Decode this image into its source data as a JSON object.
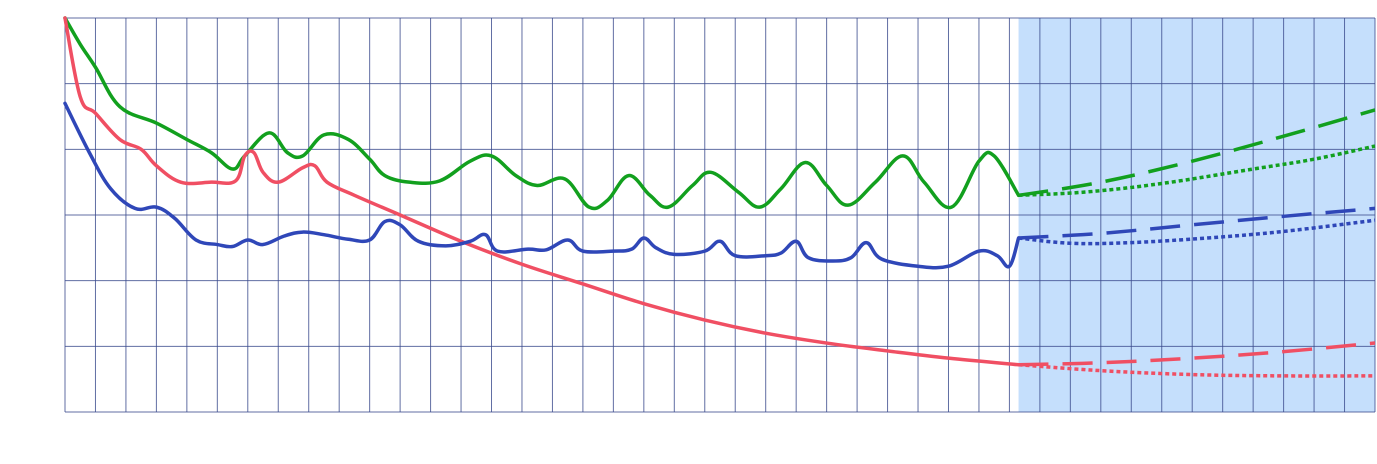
{
  "chart_data": {
    "type": "line",
    "title": "",
    "xlabel": "",
    "ylabel": "",
    "grid": true,
    "legend": "none",
    "x_range": [
      0,
      43
    ],
    "y_range": [
      0,
      6
    ],
    "forecast_region": [
      31.3,
      43
    ],
    "colors": {
      "grid": "#3a4a8c",
      "forecast_fill": "#c5dffc",
      "green": "#12a01e",
      "red": "#f04f63",
      "blue": "#2f47b8"
    },
    "series": [
      {
        "key": "green",
        "color": "#12a01e",
        "points": [
          [
            0,
            6.0
          ],
          [
            0.5,
            5.6
          ],
          [
            1,
            5.25
          ],
          [
            1.8,
            4.65
          ],
          [
            3,
            4.4
          ],
          [
            4,
            4.15
          ],
          [
            4.8,
            3.95
          ],
          [
            5.5,
            3.7
          ],
          [
            5.9,
            3.9
          ],
          [
            6.7,
            4.25
          ],
          [
            7.3,
            3.95
          ],
          [
            7.8,
            3.9
          ],
          [
            8.5,
            4.22
          ],
          [
            9.3,
            4.15
          ],
          [
            10,
            3.85
          ],
          [
            10.5,
            3.6
          ],
          [
            11.3,
            3.5
          ],
          [
            12.3,
            3.52
          ],
          [
            13.3,
            3.82
          ],
          [
            14,
            3.9
          ],
          [
            14.8,
            3.6
          ],
          [
            15.5,
            3.45
          ],
          [
            16.4,
            3.55
          ],
          [
            17.2,
            3.12
          ],
          [
            17.8,
            3.22
          ],
          [
            18.5,
            3.6
          ],
          [
            19.2,
            3.3
          ],
          [
            19.8,
            3.12
          ],
          [
            20.6,
            3.45
          ],
          [
            21.2,
            3.65
          ],
          [
            22.1,
            3.35
          ],
          [
            22.8,
            3.12
          ],
          [
            23.5,
            3.4
          ],
          [
            24.3,
            3.8
          ],
          [
            25,
            3.45
          ],
          [
            25.7,
            3.15
          ],
          [
            26.6,
            3.5
          ],
          [
            27.5,
            3.9
          ],
          [
            28.2,
            3.5
          ],
          [
            29.1,
            3.12
          ],
          [
            30,
            3.82
          ],
          [
            30.5,
            3.9
          ],
          [
            31.3,
            3.3
          ]
        ]
      },
      {
        "key": "red",
        "color": "#f04f63",
        "points": [
          [
            0,
            6.0
          ],
          [
            0.5,
            4.8
          ],
          [
            1,
            4.55
          ],
          [
            1.8,
            4.15
          ],
          [
            2.5,
            4.0
          ],
          [
            3,
            3.75
          ],
          [
            3.8,
            3.5
          ],
          [
            4.8,
            3.5
          ],
          [
            5.6,
            3.52
          ],
          [
            5.9,
            3.9
          ],
          [
            6.2,
            3.95
          ],
          [
            6.5,
            3.65
          ],
          [
            7,
            3.5
          ],
          [
            7.8,
            3.72
          ],
          [
            8.2,
            3.75
          ],
          [
            8.6,
            3.5
          ],
          [
            9.5,
            3.3
          ],
          [
            11,
            3.0
          ],
          [
            13,
            2.6
          ],
          [
            15,
            2.25
          ],
          [
            17,
            1.95
          ],
          [
            19,
            1.65
          ],
          [
            21,
            1.4
          ],
          [
            23,
            1.2
          ],
          [
            25,
            1.05
          ],
          [
            27,
            0.93
          ],
          [
            29,
            0.82
          ],
          [
            31.3,
            0.72
          ]
        ]
      },
      {
        "key": "blue",
        "color": "#2f47b8",
        "points": [
          [
            0,
            4.7
          ],
          [
            0.8,
            3.95
          ],
          [
            1.5,
            3.4
          ],
          [
            2.3,
            3.1
          ],
          [
            3,
            3.12
          ],
          [
            3.6,
            2.95
          ],
          [
            4.3,
            2.62
          ],
          [
            5,
            2.55
          ],
          [
            5.5,
            2.52
          ],
          [
            6,
            2.62
          ],
          [
            6.5,
            2.55
          ],
          [
            7.2,
            2.68
          ],
          [
            7.8,
            2.74
          ],
          [
            8.5,
            2.7
          ],
          [
            9.3,
            2.63
          ],
          [
            10,
            2.62
          ],
          [
            10.5,
            2.9
          ],
          [
            11,
            2.85
          ],
          [
            11.6,
            2.6
          ],
          [
            12.5,
            2.53
          ],
          [
            13.3,
            2.6
          ],
          [
            13.8,
            2.7
          ],
          [
            14.2,
            2.45
          ],
          [
            15.2,
            2.48
          ],
          [
            15.8,
            2.47
          ],
          [
            16.5,
            2.62
          ],
          [
            17,
            2.45
          ],
          [
            18,
            2.45
          ],
          [
            18.6,
            2.48
          ],
          [
            19,
            2.65
          ],
          [
            19.4,
            2.5
          ],
          [
            20,
            2.4
          ],
          [
            21,
            2.45
          ],
          [
            21.5,
            2.6
          ],
          [
            22,
            2.38
          ],
          [
            23,
            2.38
          ],
          [
            23.5,
            2.42
          ],
          [
            24,
            2.6
          ],
          [
            24.4,
            2.35
          ],
          [
            25.2,
            2.3
          ],
          [
            25.8,
            2.35
          ],
          [
            26.3,
            2.58
          ],
          [
            26.8,
            2.33
          ],
          [
            28,
            2.22
          ],
          [
            29,
            2.22
          ],
          [
            30,
            2.45
          ],
          [
            30.6,
            2.38
          ],
          [
            31,
            2.22
          ],
          [
            31.3,
            2.65
          ]
        ]
      }
    ],
    "projections": [
      {
        "key": "green-dashed",
        "color": "#12a01e",
        "style": "dashed",
        "points": [
          [
            31.3,
            3.3
          ],
          [
            34,
            3.5
          ],
          [
            37,
            3.82
          ],
          [
            40,
            4.2
          ],
          [
            43,
            4.6
          ]
        ]
      },
      {
        "key": "green-dotted",
        "color": "#12a01e",
        "style": "dotted",
        "points": [
          [
            31.3,
            3.3
          ],
          [
            33.5,
            3.35
          ],
          [
            36,
            3.48
          ],
          [
            39,
            3.7
          ],
          [
            41,
            3.85
          ],
          [
            43,
            4.05
          ]
        ]
      },
      {
        "key": "blue-dashed",
        "color": "#2f47b8",
        "style": "dashed",
        "points": [
          [
            31.3,
            2.65
          ],
          [
            34,
            2.72
          ],
          [
            37,
            2.85
          ],
          [
            40,
            2.98
          ],
          [
            43,
            3.1
          ]
        ]
      },
      {
        "key": "blue-dotted",
        "color": "#2f47b8",
        "style": "dotted",
        "points": [
          [
            31.3,
            2.65
          ],
          [
            33,
            2.57
          ],
          [
            35,
            2.58
          ],
          [
            37.5,
            2.65
          ],
          [
            40,
            2.75
          ],
          [
            43,
            2.92
          ]
        ]
      },
      {
        "key": "red-dashed",
        "color": "#f04f63",
        "style": "dashed",
        "points": [
          [
            31.3,
            0.72
          ],
          [
            34,
            0.75
          ],
          [
            37,
            0.82
          ],
          [
            40,
            0.92
          ],
          [
            43,
            1.05
          ]
        ]
      },
      {
        "key": "red-dotted",
        "color": "#f04f63",
        "style": "dotted",
        "points": [
          [
            31.3,
            0.72
          ],
          [
            34,
            0.63
          ],
          [
            37,
            0.57
          ],
          [
            40,
            0.55
          ],
          [
            43,
            0.55
          ]
        ]
      }
    ]
  }
}
